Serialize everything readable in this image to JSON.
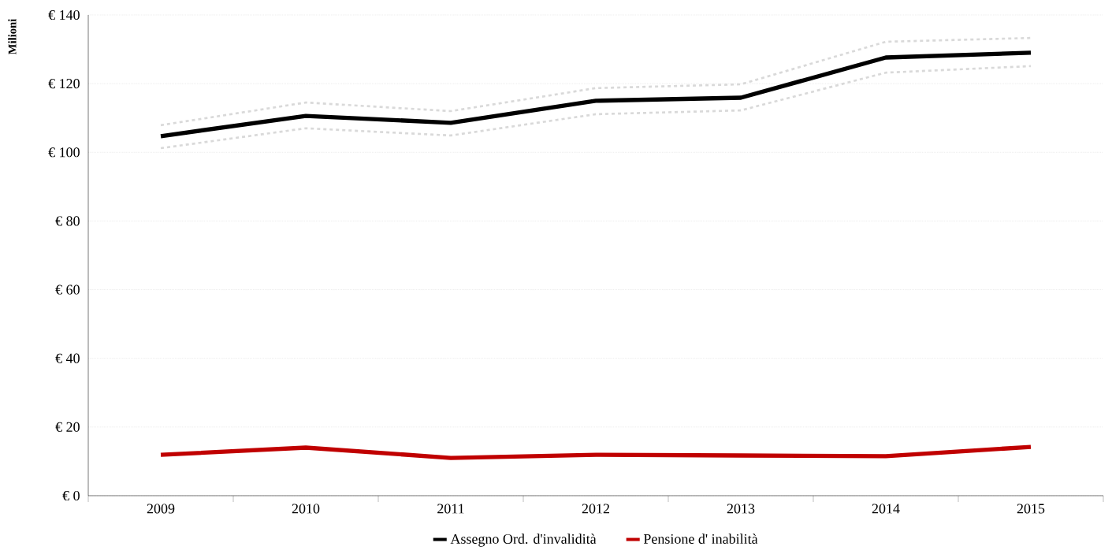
{
  "chart_data": {
    "type": "line",
    "ylabel": "Milioni",
    "categories": [
      "2009",
      "2010",
      "2011",
      "2012",
      "2013",
      "2014",
      "2015"
    ],
    "series": [
      {
        "color": "#d9d9d9",
        "line_style": "dashed",
        "values": [
          107.9,
          114.5,
          112.0,
          118.7,
          119.8,
          132.2,
          133.3
        ]
      },
      {
        "color": "#d9d9d9",
        "line_style": "dashed",
        "values": [
          101.2,
          107.0,
          104.9,
          111.1,
          112.2,
          123.2,
          125.1
        ]
      },
      {
        "name": "Assegno Ord. d'invalidità",
        "color": "#000000",
        "values": [
          104.7,
          110.6,
          108.6,
          115.0,
          115.9,
          127.6,
          129.0
        ]
      },
      {
        "name": "Pensione d' inabilità",
        "color": "#c00000",
        "values": [
          11.9,
          14.0,
          11.0,
          11.9,
          11.7,
          11.5,
          14.2
        ]
      }
    ],
    "ylim": [
      0,
      140
    ],
    "yticks": [
      {
        "value": 0,
        "label": "€ 0"
      },
      {
        "value": 20,
        "label": "€ 20"
      },
      {
        "value": 40,
        "label": "€ 40"
      },
      {
        "value": 60,
        "label": "€ 60"
      },
      {
        "value": 80,
        "label": "€ 80"
      },
      {
        "value": 100,
        "label": "€ 100"
      },
      {
        "value": 120,
        "label": "€ 120"
      },
      {
        "value": 140,
        "label": "€ 140"
      }
    ],
    "grid": "y",
    "legend": "bottom"
  }
}
